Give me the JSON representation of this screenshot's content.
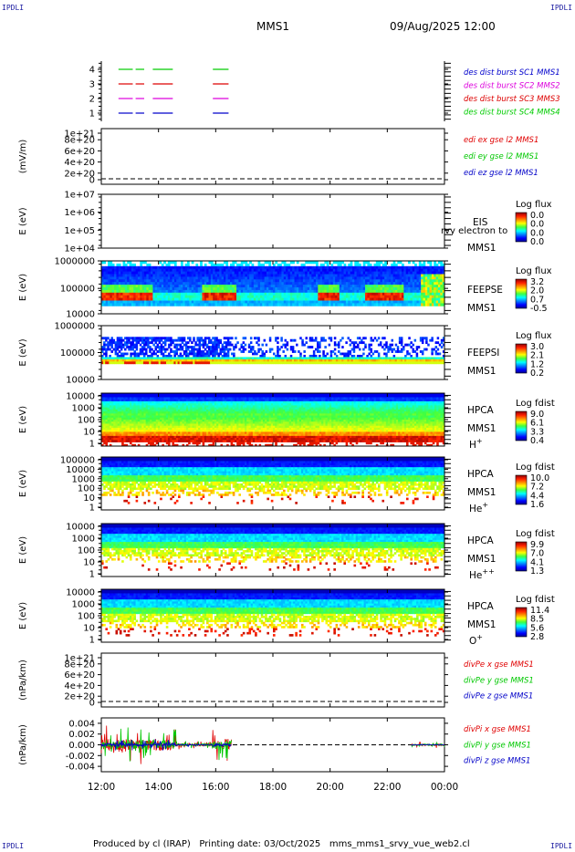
{
  "header": {
    "corner_label": "IPDLI",
    "mission": "MMS1",
    "datetime": "09/Aug/2025 12:00"
  },
  "footer": {
    "produced_by": "Produced by cl (IRAP)",
    "printing_date": "Printing date: 03/Oct/2025",
    "script_name": "mms_mms1_srvy_vue_web2.cl"
  },
  "time_axis": {
    "start_hour": 12,
    "end_hour": 24,
    "ticks": [
      "12:00",
      "14:00",
      "16:00",
      "18:00",
      "20:00",
      "22:00",
      "00:00"
    ]
  },
  "colors": {
    "burst1": "#00cc00",
    "burst2": "#dd0000",
    "burst3": "#dd00dd",
    "burst4": "#0000cc",
    "red": "#e00000",
    "green": "#00c800",
    "blue": "#0000c8"
  },
  "chart_data": [
    {
      "type": "timeline",
      "id": "burst",
      "yticks": [
        "4",
        "3",
        "2",
        "1"
      ],
      "ylim": [
        0.5,
        4.5
      ],
      "segments_hours": [
        [
          12.6,
          13.1
        ],
        [
          13.2,
          13.5
        ],
        [
          13.8,
          14.5
        ],
        [
          15.9,
          16.45
        ]
      ],
      "legend": [
        {
          "label": "des dist burst SC1 MMS1",
          "color": "#0000cc"
        },
        {
          "label": "des dist burst SC2 MMS2",
          "color": "#dd00dd"
        },
        {
          "label": "des dist burst SC3 MMS3",
          "color": "#dd0000"
        },
        {
          "label": "des dist burst SC4 MMS4",
          "color": "#00cc00"
        }
      ]
    },
    {
      "type": "line",
      "id": "edi",
      "ylabel": "(mV/m)",
      "yticks": [
        "1e+21",
        "8e+20",
        "6e+20",
        "4e+20",
        "2e+20",
        "0"
      ],
      "ylim": [
        0,
        1e+21
      ],
      "legend": [
        {
          "label": "edi ex gse l2 MMS1",
          "color": "#e00000"
        },
        {
          "label": "edi ey gse l2 MMS1",
          "color": "#00c800"
        },
        {
          "label": "edi ez gse l2 MMS1",
          "color": "#0000c8"
        }
      ]
    },
    {
      "type": "heatmap",
      "id": "eis",
      "ylabel": "E (eV)",
      "yticks": [
        "1e+07",
        "1e+06",
        "1e+05",
        "1e+04"
      ],
      "ylim": [
        10000,
        10000000
      ],
      "instrument": [
        "EIS",
        "MMS1"
      ],
      "overlay_label": "rvy electron to",
      "cbar_title": "Log flux",
      "cbar_ticks": [
        "0.0",
        "0.0",
        "0.0",
        "0.0"
      ]
    },
    {
      "type": "heatmap",
      "id": "feepse",
      "ylabel": "E (eV)",
      "yticks": [
        "1000000",
        "100000",
        "10000"
      ],
      "ylim": [
        10000,
        1000000
      ],
      "instrument": [
        "FEEPSE",
        "MMS1"
      ],
      "cbar_title": "Log flux",
      "cbar_ticks": [
        "3.2",
        "2.0",
        "0.7",
        "-0.5"
      ]
    },
    {
      "type": "heatmap",
      "id": "feepsi",
      "ylabel": "E (eV)",
      "yticks": [
        "1000000",
        "100000",
        "10000"
      ],
      "ylim": [
        10000,
        1000000
      ],
      "instrument": [
        "FEEPSI",
        "MMS1"
      ],
      "cbar_title": "Log flux",
      "cbar_ticks": [
        "3.0",
        "2.1",
        "1.2",
        "0.2"
      ]
    },
    {
      "type": "heatmap",
      "id": "hpca_h",
      "ylabel": "E (eV)",
      "yticks": [
        "10000",
        "1000",
        "100",
        "10",
        "1"
      ],
      "ylim": [
        1,
        30000
      ],
      "instrument": [
        "HPCA",
        "MMS1"
      ],
      "species": "H",
      "species_charge": "+",
      "cbar_title": "Log fdist",
      "cbar_ticks": [
        "9.0",
        "6.1",
        "3.3",
        "0.4"
      ]
    },
    {
      "type": "heatmap",
      "id": "hpca_he1",
      "ylabel": "E (eV)",
      "yticks": [
        "100000",
        "10000",
        "1000",
        "100",
        "10",
        "1"
      ],
      "ylim": [
        1,
        100000
      ],
      "instrument": [
        "HPCA",
        "MMS1"
      ],
      "species": "He",
      "species_charge": "+",
      "cbar_title": "Log fdist",
      "cbar_ticks": [
        "10.0",
        "7.2",
        "4.4",
        "1.6"
      ]
    },
    {
      "type": "heatmap",
      "id": "hpca_he2",
      "ylabel": "E (eV)",
      "yticks": [
        "10000",
        "1000",
        "100",
        "10",
        "1"
      ],
      "ylim": [
        1,
        30000
      ],
      "instrument": [
        "HPCA",
        "MMS1"
      ],
      "species": "He",
      "species_charge": "++",
      "cbar_title": "Log fdist",
      "cbar_ticks": [
        "9.9",
        "7.0",
        "4.1",
        "1.3"
      ]
    },
    {
      "type": "heatmap",
      "id": "hpca_o",
      "ylabel": "E (eV)",
      "yticks": [
        "10000",
        "1000",
        "100",
        "10",
        "1"
      ],
      "ylim": [
        1,
        30000
      ],
      "instrument": [
        "HPCA",
        "MMS1"
      ],
      "species": "O",
      "species_charge": "+",
      "cbar_title": "Log fdist",
      "cbar_ticks": [
        "11.4",
        "8.5",
        "5.6",
        "2.8"
      ]
    },
    {
      "type": "line",
      "id": "divpe",
      "ylabel": "(nPa/km)",
      "yticks": [
        "1e+21",
        "8e+20",
        "6e+20",
        "4e+20",
        "2e+20",
        "0"
      ],
      "ylim": [
        0,
        1e+21
      ],
      "legend": [
        {
          "label": "divPe x gse MMS1",
          "color": "#e00000"
        },
        {
          "label": "divPe y gse MMS1",
          "color": "#00c800"
        },
        {
          "label": "divPe z gse MMS1",
          "color": "#0000c8"
        }
      ]
    },
    {
      "type": "line",
      "id": "divpi",
      "ylabel": "(nPa/km)",
      "yticks": [
        "0.004",
        "0.002",
        "0.000",
        "-0.002",
        "-0.004"
      ],
      "ylim": [
        -0.005,
        0.005
      ],
      "data_intervals_hours": [
        [
          12.0,
          16.55
        ],
        [
          22.85,
          24.0
        ]
      ],
      "legend": [
        {
          "label": "divPi x gse MMS1",
          "color": "#e00000"
        },
        {
          "label": "divPi y gse MMS1",
          "color": "#00c800"
        },
        {
          "label": "divPi z gse MMS1",
          "color": "#0000c8"
        }
      ]
    }
  ]
}
